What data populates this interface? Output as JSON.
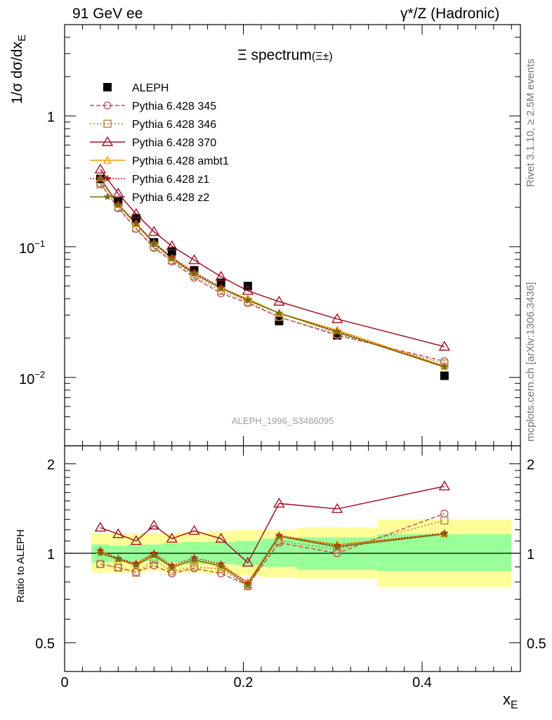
{
  "header": {
    "left": "91 GeV ee",
    "right": "γ*/Z (Hadronic)"
  },
  "side": {
    "rivet": "Rivet 3.1.10, ≥ 2.5M events",
    "mcplots": "mcplots.cern.ch [arXiv:1306.3436]"
  },
  "watermark": "ALEPH_1996_S3486095",
  "main_title": "Ξ spectrum",
  "main_title_suffix": "(Ξ±)",
  "y_label_main": "1/σ dσ/dx",
  "y_label_main_sub": "E",
  "y_label_ratio": "Ratio to ALEPH",
  "x_label": "x",
  "x_label_sub": "E",
  "colors": {
    "data": "#000000",
    "p345": "#b5545c",
    "p346": "#b57a3d",
    "p370": "#a01428",
    "ambt1": "#f0a000",
    "z1": "#c81414",
    "z2": "#707010",
    "band_inner": "#99ff99",
    "band_outer": "#ffff99"
  },
  "chart_data": [
    {
      "type": "scatter",
      "panel": "main",
      "title": "Ξ spectrum (Ξ±)",
      "ylabel": "1/σ dσ/dx_E",
      "xlim": [
        0,
        0.51
      ],
      "ylim": [
        0.003,
        5
      ],
      "yscale": "log",
      "yticks": [
        "10^-2",
        "10^-1",
        "1"
      ],
      "legend_placement": "top-left",
      "x": [
        0.04,
        0.06,
        0.08,
        0.1,
        0.12,
        0.145,
        0.175,
        0.205,
        0.24,
        0.305,
        0.425
      ],
      "series": [
        {
          "name": "ALEPH",
          "key": "data",
          "marker": "square",
          "values": [
            0.33,
            0.22,
            0.165,
            0.108,
            0.092,
            0.066,
            0.053,
            0.05,
            0.027,
            0.021,
            0.0103
          ]
        },
        {
          "name": "Pythia 6.428 345",
          "key": "p345",
          "marker": "circle",
          "dash": "6,3",
          "values": [
            0.305,
            0.197,
            0.137,
            0.098,
            0.077,
            0.058,
            0.044,
            0.037,
            0.029,
            0.021,
            0.0133
          ]
        },
        {
          "name": "Pythia 6.428 346",
          "key": "p346",
          "marker": "square-open",
          "dash": "2,3",
          "values": [
            0.3,
            0.2,
            0.138,
            0.1,
            0.079,
            0.06,
            0.046,
            0.038,
            0.029,
            0.0215,
            0.0128
          ]
        },
        {
          "name": "Pythia 6.428 370",
          "key": "p370",
          "marker": "triangle",
          "dash": "",
          "values": [
            0.39,
            0.255,
            0.178,
            0.13,
            0.101,
            0.079,
            0.059,
            0.046,
            0.038,
            0.028,
            0.0172
          ]
        },
        {
          "name": "Pythia 6.428 ambt1",
          "key": "ambt1",
          "marker": "triangle-small",
          "dash": "",
          "values": [
            0.335,
            0.21,
            0.15,
            0.107,
            0.082,
            0.063,
            0.048,
            0.04,
            0.031,
            0.023,
            0.0122
          ]
        },
        {
          "name": "Pythia 6.428 z1",
          "key": "z1",
          "marker": "star",
          "dash": "2,2",
          "values": [
            0.335,
            0.212,
            0.151,
            0.108,
            0.083,
            0.064,
            0.049,
            0.039,
            0.031,
            0.0225,
            0.0121
          ]
        },
        {
          "name": "Pythia 6.428 z2",
          "key": "z2",
          "marker": "star",
          "dash": "",
          "values": [
            0.33,
            0.208,
            0.149,
            0.106,
            0.081,
            0.062,
            0.048,
            0.039,
            0.031,
            0.0222,
            0.012
          ]
        }
      ]
    },
    {
      "type": "line",
      "panel": "ratio",
      "ylabel": "Ratio to ALEPH",
      "xlabel": "x_E",
      "xlim": [
        0,
        0.51
      ],
      "ylim": [
        0.4,
        2.3
      ],
      "yscale": "log",
      "yticks": [
        0.5,
        1,
        2
      ],
      "xticks": [
        0,
        0.2,
        0.4
      ],
      "x": [
        0.04,
        0.06,
        0.08,
        0.1,
        0.12,
        0.145,
        0.175,
        0.205,
        0.24,
        0.305,
        0.425
      ],
      "band_edges": [
        0.03,
        0.05,
        0.07,
        0.09,
        0.11,
        0.13,
        0.16,
        0.19,
        0.22,
        0.26,
        0.35,
        0.5
      ],
      "band_inner": [
        [
          0.93,
          1.07
        ],
        [
          0.94,
          1.06
        ],
        [
          0.94,
          1.07
        ],
        [
          0.94,
          1.07
        ],
        [
          0.93,
          1.08
        ],
        [
          0.92,
          1.09
        ],
        [
          0.92,
          1.09
        ],
        [
          0.91,
          1.1
        ],
        [
          0.9,
          1.12
        ],
        [
          0.88,
          1.13
        ],
        [
          0.87,
          1.16
        ]
      ],
      "band_outer": [
        [
          0.86,
          1.17
        ],
        [
          0.86,
          1.17
        ],
        [
          0.86,
          1.17
        ],
        [
          0.87,
          1.17
        ],
        [
          0.86,
          1.17
        ],
        [
          0.86,
          1.18
        ],
        [
          0.85,
          1.19
        ],
        [
          0.84,
          1.2
        ],
        [
          0.83,
          1.2
        ],
        [
          0.82,
          1.22
        ],
        [
          0.77,
          1.3
        ]
      ],
      "series": [
        {
          "name": "Pythia 6.428 345",
          "key": "p345",
          "marker": "circle",
          "dash": "6,3",
          "values": [
            0.92,
            0.895,
            0.865,
            0.91,
            0.855,
            0.89,
            0.855,
            0.78,
            1.085,
            1.0,
            1.36
          ]
        },
        {
          "name": "Pythia 6.428 346",
          "key": "p346",
          "marker": "square-open",
          "dash": "2,3",
          "values": [
            0.92,
            0.895,
            0.86,
            0.95,
            0.87,
            0.9,
            0.885,
            0.775,
            1.1,
            1.03,
            1.29
          ]
        },
        {
          "name": "Pythia 6.428 370",
          "key": "p370",
          "marker": "triangle",
          "dash": "",
          "values": [
            1.22,
            1.16,
            1.1,
            1.24,
            1.12,
            1.19,
            1.12,
            0.93,
            1.47,
            1.41,
            1.68
          ]
        },
        {
          "name": "Pythia 6.428 ambt1",
          "key": "ambt1",
          "marker": "triangle-small",
          "dash": "",
          "values": [
            1.02,
            0.955,
            0.92,
            0.99,
            0.9,
            0.95,
            0.91,
            0.8,
            1.14,
            1.07,
            1.16
          ]
        },
        {
          "name": "Pythia 6.428 z1",
          "key": "z1",
          "marker": "star",
          "dash": "2,2",
          "values": [
            1.02,
            0.96,
            0.925,
            1.0,
            0.91,
            0.965,
            0.92,
            0.79,
            1.15,
            1.06,
            1.17
          ]
        },
        {
          "name": "Pythia 6.428 z2",
          "key": "z2",
          "marker": "star",
          "dash": "",
          "values": [
            1.0,
            0.955,
            0.91,
            0.985,
            0.895,
            0.95,
            0.905,
            0.78,
            1.14,
            1.05,
            1.16
          ]
        }
      ]
    }
  ]
}
